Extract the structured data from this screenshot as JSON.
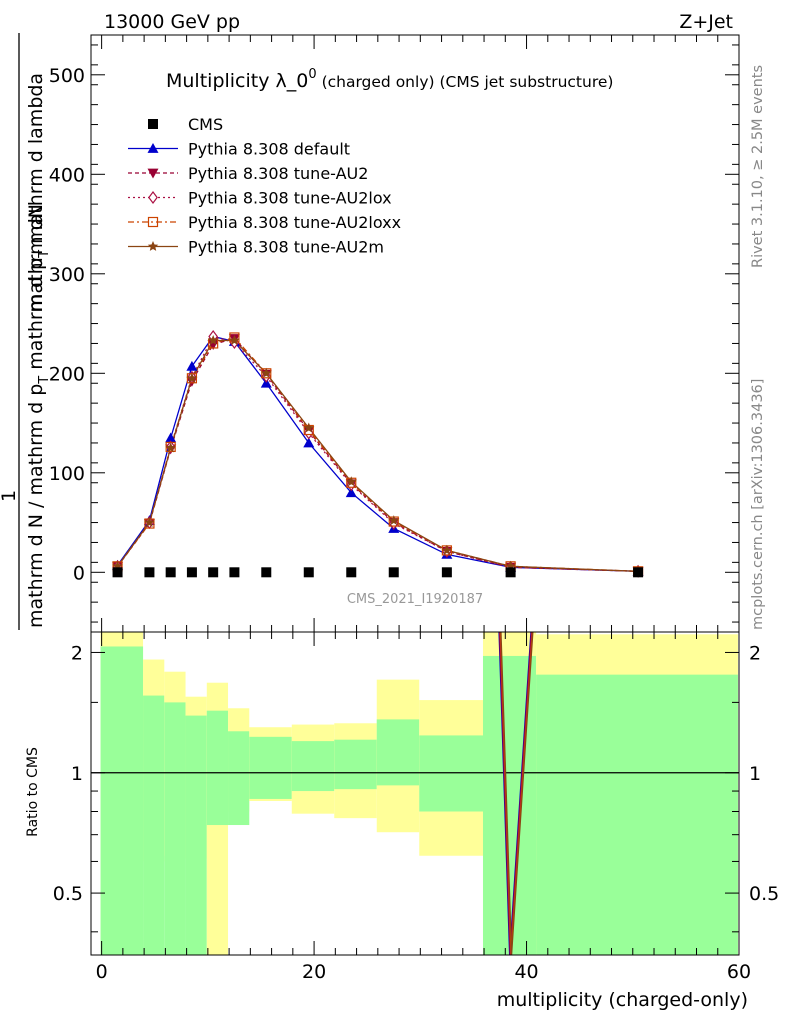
{
  "header": {
    "energy_label": "13000 GeV pp",
    "process_label": "Z+Jet"
  },
  "side_labels": {
    "rivet": "Rivet 3.1.10, ≥ 2.5M events",
    "mcplots": "mcplots.cern.ch [arXiv:1306.3436]"
  },
  "chart_data": [
    {
      "type": "line",
      "title_main": "Multiplicity λ_0",
      "title_sup": "0",
      "title_suffix": " (charged only) (CMS jet substructure)",
      "ylabel_numerator": "mathrm dN",
      "ylabel_denominator": "mathrm d N / mathrm d p",
      "ylabel_pt_sub": "T",
      "ylabel_tail": " mathrm d p",
      "ylabel_tail2": " mathrm d lambda",
      "ylabel_one": "1",
      "ylabel_sub_T": "T",
      "xlabel": "multiplicity (charged-only)",
      "xlim": [
        -1,
        60
      ],
      "ylim": [
        -60,
        540
      ],
      "yticks": [
        0,
        100,
        200,
        300,
        400,
        500
      ],
      "watermark": "CMS_2021_I1920187",
      "data_series": {
        "name": "CMS",
        "x": [
          1.5,
          4.5,
          6.5,
          8.5,
          10.5,
          12.5,
          15.5,
          19.5,
          23.5,
          27.5,
          32.5,
          38.5,
          50.5
        ],
        "y": [
          0,
          0,
          0,
          0,
          0,
          0,
          0,
          0,
          0,
          0,
          0,
          0,
          0
        ]
      },
      "series": [
        {
          "name": "Pythia 8.308 default",
          "color": "#0000cc",
          "marker": "triangle-up",
          "dash": "solid",
          "x": [
            1.5,
            4.5,
            6.5,
            8.5,
            10.5,
            12.5,
            15.5,
            19.5,
            23.5,
            27.5,
            32.5,
            38.5,
            50.5
          ],
          "y": [
            7,
            52,
            135,
            207,
            237,
            232,
            190,
            130,
            80,
            44,
            18,
            5,
            1
          ]
        },
        {
          "name": "Pythia 8.308 tune-AU2",
          "color": "#990033",
          "marker": "triangle-down",
          "dash": "4,3",
          "x": [
            1.5,
            4.5,
            6.5,
            8.5,
            10.5,
            12.5,
            15.5,
            19.5,
            23.5,
            27.5,
            32.5,
            38.5,
            50.5
          ],
          "y": [
            6,
            49,
            124,
            192,
            229,
            235,
            199,
            142,
            89,
            50,
            21,
            5,
            1
          ]
        },
        {
          "name": "Pythia 8.308 tune-AU2lox",
          "color": "#aa1144",
          "marker": "diamond",
          "dash": "2,3",
          "x": [
            1.5,
            4.5,
            6.5,
            8.5,
            10.5,
            12.5,
            15.5,
            19.5,
            23.5,
            27.5,
            32.5,
            38.5,
            50.5
          ],
          "y": [
            6,
            50,
            126,
            196,
            237,
            231,
            197,
            140,
            88,
            49,
            21,
            5,
            1
          ]
        },
        {
          "name": "Pythia 8.308 tune-AU2loxx",
          "color": "#cc4400",
          "marker": "square-open",
          "dash": "6,3,2,3",
          "x": [
            1.5,
            4.5,
            6.5,
            8.5,
            10.5,
            12.5,
            15.5,
            19.5,
            23.5,
            27.5,
            32.5,
            38.5,
            50.5
          ],
          "y": [
            6,
            49,
            126,
            195,
            230,
            236,
            200,
            143,
            90,
            51,
            22,
            6,
            1
          ]
        },
        {
          "name": "Pythia 8.308 tune-AU2m",
          "color": "#8b4513",
          "marker": "star",
          "dash": "solid",
          "x": [
            1.5,
            4.5,
            6.5,
            8.5,
            10.5,
            12.5,
            15.5,
            19.5,
            23.5,
            27.5,
            32.5,
            38.5,
            50.5
          ],
          "y": [
            6,
            50,
            125,
            195,
            233,
            233,
            200,
            145,
            91,
            52,
            22,
            6,
            1
          ]
        }
      ]
    },
    {
      "type": "area",
      "ylabel": "Ratio to CMS",
      "xlabel": "multiplicity (charged-only)",
      "xlim": [
        -1,
        60
      ],
      "ylim": [
        0.35,
        2.25
      ],
      "log_scale": true,
      "yticks": [
        0.5,
        1,
        2
      ],
      "ytick_labels": [
        "0.5",
        "1",
        "2"
      ],
      "xticks": [
        0,
        20,
        40,
        60
      ],
      "xtick_labels": [
        "0",
        "20",
        "40",
        "60"
      ],
      "reference_line": 1,
      "bands": {
        "bin_edges": [
          -0.1,
          3.9,
          5.9,
          7.9,
          9.9,
          11.9,
          13.9,
          17.9,
          21.9,
          25.9,
          29.9,
          35.9,
          40.9,
          59.9
        ],
        "green_low": [
          0.35,
          0.35,
          0.35,
          0.35,
          0.74,
          0.74,
          0.86,
          0.9,
          0.91,
          0.93,
          0.8,
          0.35,
          0.35
        ],
        "green_high": [
          2.07,
          1.56,
          1.5,
          1.39,
          1.43,
          1.27,
          1.23,
          1.2,
          1.21,
          1.36,
          1.24,
          1.96,
          1.76
        ],
        "yellow_low": [
          0.35,
          0.6,
          0.62,
          0.61,
          0.35,
          0.8,
          0.85,
          0.79,
          0.77,
          0.71,
          0.62,
          0.35,
          0.35
        ],
        "yellow_high": [
          2.25,
          1.92,
          1.79,
          1.55,
          1.68,
          1.45,
          1.3,
          1.32,
          1.33,
          1.71,
          1.52,
          2.25,
          2.22
        ]
      },
      "ratio_lines_x": [
        37.5,
        38.5,
        40.5
      ],
      "ratio_lines_y": [
        2.25,
        0.35,
        2.25
      ]
    }
  ],
  "legend": {
    "placement": "top-left"
  },
  "colors": {
    "green_band": "#99ff99",
    "yellow_band": "#ffff99",
    "data_marker": "#000000"
  }
}
